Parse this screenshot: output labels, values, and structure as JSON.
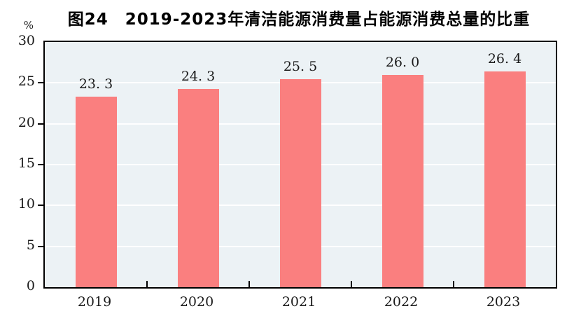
{
  "title": "图24　2019-2023年清洁能源消费量占能源消费总量的比重",
  "y_axis": {
    "unit_label": "%",
    "ticks": [
      0,
      5,
      10,
      15,
      20,
      25,
      30
    ],
    "max": 30
  },
  "chart_data": {
    "type": "bar",
    "title": "图24　2019-2023年清洁能源消费量占能源消费总量的比重",
    "categories": [
      "2019",
      "2020",
      "2021",
      "2022",
      "2023"
    ],
    "values": [
      23.3,
      24.3,
      25.5,
      26.0,
      26.4
    ],
    "value_labels": [
      "23. 3",
      "24. 3",
      "25. 5",
      "26. 0",
      "26. 4"
    ],
    "xlabel": "",
    "ylabel": "%",
    "ylim": [
      0,
      30
    ],
    "grid": "horizontal",
    "legend_position": "none"
  },
  "colors": {
    "bar": "#fa7f7f",
    "plot_background": "#ecf2f5",
    "gridline": "#ffffff",
    "axis": "#000000",
    "text": "#1a1a1a"
  }
}
